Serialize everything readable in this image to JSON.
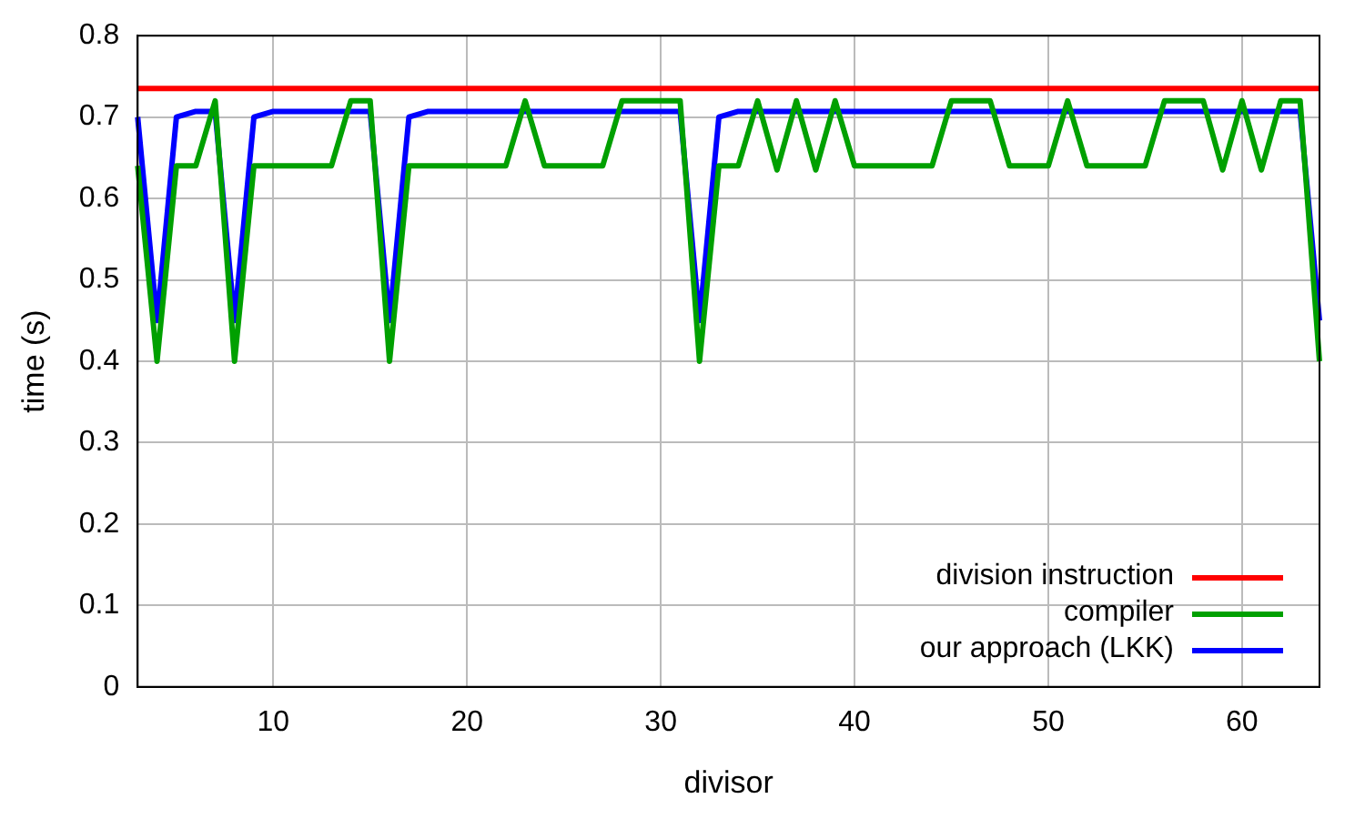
{
  "chart_data": {
    "type": "line",
    "xlabel": "divisor",
    "ylabel": "time (s)",
    "xlim": [
      3,
      64
    ],
    "xticks": [
      10,
      20,
      30,
      40,
      50,
      60
    ],
    "ylim": [
      0,
      0.8
    ],
    "yticks": [
      0,
      0.1,
      0.2,
      0.3,
      0.4,
      0.5,
      0.6,
      0.7,
      0.8
    ],
    "grid": true,
    "legend": "bottom right",
    "marker": "none",
    "line_style": "solid",
    "series": [
      {
        "name": "division instruction",
        "color": "#ff0000",
        "x": [
          3,
          64
        ],
        "values": [
          0.735,
          0.735
        ]
      },
      {
        "name": "compiler",
        "color": "#00a000",
        "x": [
          3,
          4,
          5,
          6,
          7,
          8,
          9,
          10,
          11,
          12,
          13,
          14,
          15,
          16,
          17,
          18,
          19,
          20,
          21,
          22,
          23,
          24,
          25,
          26,
          27,
          28,
          29,
          30,
          31,
          32,
          33,
          34,
          35,
          36,
          37,
          38,
          39,
          40,
          41,
          42,
          43,
          44,
          45,
          46,
          47,
          48,
          49,
          50,
          51,
          52,
          53,
          54,
          55,
          56,
          57,
          58,
          59,
          60,
          61,
          62,
          63,
          64
        ],
        "values": [
          0.64,
          0.4,
          0.64,
          0.64,
          0.72,
          0.4,
          0.64,
          0.64,
          0.64,
          0.64,
          0.64,
          0.72,
          0.72,
          0.4,
          0.64,
          0.64,
          0.64,
          0.64,
          0.64,
          0.64,
          0.72,
          0.64,
          0.64,
          0.64,
          0.64,
          0.72,
          0.72,
          0.72,
          0.72,
          0.4,
          0.64,
          0.64,
          0.72,
          0.635,
          0.72,
          0.635,
          0.72,
          0.64,
          0.64,
          0.64,
          0.64,
          0.64,
          0.72,
          0.72,
          0.72,
          0.64,
          0.64,
          0.64,
          0.72,
          0.64,
          0.64,
          0.64,
          0.64,
          0.72,
          0.72,
          0.72,
          0.635,
          0.72,
          0.635,
          0.72,
          0.72,
          0.4
        ]
      },
      {
        "name": "our approach (LKK)",
        "color": "#0000ff",
        "x": [
          3,
          4,
          5,
          6,
          7,
          8,
          9,
          10,
          11,
          12,
          13,
          14,
          15,
          16,
          17,
          18,
          19,
          20,
          21,
          22,
          23,
          24,
          25,
          26,
          27,
          28,
          29,
          30,
          31,
          32,
          33,
          34,
          35,
          36,
          37,
          38,
          39,
          40,
          41,
          42,
          43,
          44,
          45,
          46,
          47,
          48,
          49,
          50,
          51,
          52,
          53,
          54,
          55,
          56,
          57,
          58,
          59,
          60,
          61,
          62,
          63,
          64
        ],
        "values": [
          0.7,
          0.45,
          0.7,
          0.707,
          0.707,
          0.45,
          0.7,
          0.707,
          0.707,
          0.707,
          0.707,
          0.707,
          0.707,
          0.45,
          0.7,
          0.707,
          0.707,
          0.707,
          0.707,
          0.707,
          0.707,
          0.707,
          0.707,
          0.707,
          0.707,
          0.707,
          0.707,
          0.707,
          0.707,
          0.45,
          0.7,
          0.707,
          0.707,
          0.707,
          0.707,
          0.707,
          0.707,
          0.707,
          0.707,
          0.707,
          0.707,
          0.707,
          0.707,
          0.707,
          0.707,
          0.707,
          0.707,
          0.707,
          0.707,
          0.707,
          0.707,
          0.707,
          0.707,
          0.707,
          0.707,
          0.707,
          0.707,
          0.707,
          0.707,
          0.707,
          0.707,
          0.45
        ]
      }
    ]
  }
}
